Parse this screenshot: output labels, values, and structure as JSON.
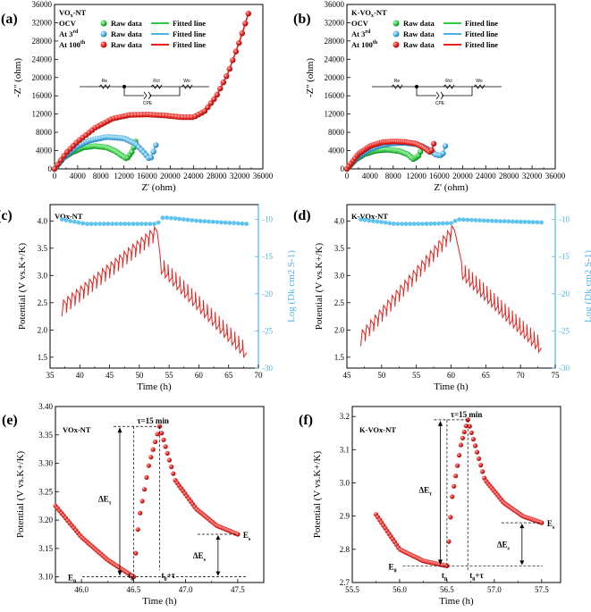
{
  "colors": {
    "ocv": "#2ecc40",
    "third": "#4fb3e8",
    "hundredth": "#e8201c",
    "diffusion": "#5ec3ee",
    "axis": "#000000"
  },
  "nyquist": [
    {
      "label": "(a)",
      "sample": "VOx-NT",
      "xlabel": "Z' (ohm)",
      "ylabel": "-Z'' (ohm)",
      "xticks": [
        "0",
        "4000",
        "8000",
        "12000",
        "16000",
        "20000",
        "24000",
        "28000",
        "32000",
        "36000"
      ],
      "yticks": [
        "0",
        "4000",
        "8000",
        "12000",
        "16000",
        "20000",
        "24000",
        "28000",
        "32000",
        "36000"
      ],
      "legend_rows": [
        {
          "state": "OCV",
          "raw": "Raw data",
          "fit": "Fitted line"
        },
        {
          "state": "At 3rd",
          "raw": "Raw data",
          "fit": "Fitted line"
        },
        {
          "state": "At 100th",
          "raw": "Raw data",
          "fit": "Fitted line"
        }
      ],
      "circuit": {
        "re": "Re",
        "rct": "Rct",
        "cpe": "CPE",
        "wo": "Wo"
      }
    },
    {
      "label": "(b)",
      "sample": "K-VOx-NT",
      "xlabel": "Z' (ohm)",
      "ylabel": "-Z'' (ohm)",
      "xticks": [
        "0",
        "4000",
        "8000",
        "12000",
        "16000",
        "20000",
        "24000",
        "28000",
        "32000",
        "36000"
      ],
      "yticks": [
        "0",
        "4000",
        "8000",
        "12000",
        "16000",
        "20000",
        "24000",
        "28000",
        "32000",
        "36000"
      ],
      "legend_rows": [
        {
          "state": "OCV",
          "raw": "Raw data",
          "fit": "Fitted line"
        },
        {
          "state": "At 3rd",
          "raw": "Raw data",
          "fit": "Fitted line"
        },
        {
          "state": "At 100th",
          "raw": "Raw data",
          "fit": "Fitted line"
        }
      ],
      "circuit": {
        "re": "Re",
        "rct": "Rct",
        "cpe": "CPE",
        "wo": "Wo"
      }
    }
  ],
  "gitt": [
    {
      "label": "(c)",
      "sample": "VOx-NT",
      "xlabel": "Time (h)",
      "ylabel_left": "Potential (V vs.K+/K)",
      "ylabel_right": "Log (Dk cm2 S-1)",
      "xticks": [
        "35",
        "40",
        "45",
        "50",
        "55",
        "60",
        "65",
        "70"
      ],
      "yticks_left": [
        "1.5",
        "2.0",
        "2.5",
        "3.0",
        "3.5",
        "4.0"
      ],
      "yticks_right": [
        "-30",
        "-25",
        "-20",
        "-15",
        "-10"
      ]
    },
    {
      "label": "(d)",
      "sample": "K-VOx-NT",
      "xlabel": "Time (h)",
      "ylabel_left": "Potential (V vs.K+/K)",
      "ylabel_right": "Log (Dk cm2 S-1)",
      "xticks": [
        "45",
        "50",
        "55",
        "60",
        "65",
        "70",
        "75"
      ],
      "yticks_left": [
        "1.5",
        "2.0",
        "2.5",
        "3.0",
        "3.5",
        "4.0"
      ],
      "yticks_right": [
        "-30",
        "-25",
        "-20",
        "-15",
        "-10"
      ]
    }
  ],
  "pulse": [
    {
      "label": "(e)",
      "sample": "VOx-NT",
      "xlabel": "Time (h)",
      "ylabel": "Potential (V vs.K+/K)",
      "xticks": [
        "46.0",
        "46.5",
        "47.0",
        "47.5"
      ],
      "yticks": [
        "3.10",
        "3.15",
        "3.20",
        "3.25",
        "3.30",
        "3.35",
        "3.40"
      ],
      "annotations": {
        "tau": "τ=15 min",
        "dEt": "ΔEτ",
        "dEs": "ΔEs",
        "E0": "E0",
        "Es": "Es",
        "t0": "t0",
        "t0tau": "t0+τ"
      }
    },
    {
      "label": "(f)",
      "sample": "K-VOx-NT",
      "xlabel": "Time (h)",
      "ylabel": "Potential (V vs.K+/K)",
      "xticks": [
        "55.5",
        "56.0",
        "56.5",
        "57.0",
        "57.5"
      ],
      "yticks": [
        "2.7",
        "2.8",
        "2.9",
        "3.0",
        "3.1",
        "3.2"
      ],
      "annotations": {
        "tau": "τ=15 min",
        "dEt": "ΔEτ",
        "dEs": "ΔEs",
        "E0": "E0",
        "Es": "Es",
        "t0": "t0",
        "t0tau": "t0+τ"
      }
    }
  ],
  "chart_data": [
    {
      "type": "scatter",
      "title": "(a) VOx-NT",
      "xlabel": "Z' (ohm)",
      "ylabel": "-Z'' (ohm)",
      "xlim": [
        0,
        36000
      ],
      "ylim": [
        0,
        36000
      ],
      "series": [
        {
          "name": "OCV",
          "x": [
            0,
            1500,
            3000,
            5000,
            7000,
            9000,
            10500,
            11500,
            12500,
            13500,
            14000
          ],
          "y": [
            0,
            2400,
            3600,
            4700,
            5000,
            4700,
            3900,
            3000,
            2200,
            4000,
            6000
          ]
        },
        {
          "name": "At 3rd",
          "x": [
            0,
            2000,
            4000,
            6000,
            9000,
            12000,
            14000,
            15500,
            16500,
            17000,
            17500
          ],
          "y": [
            0,
            3000,
            5000,
            6200,
            7000,
            6700,
            5500,
            3500,
            2000,
            3500,
            5200
          ]
        },
        {
          "name": "At 100th",
          "x": [
            0,
            2000,
            4000,
            7000,
            10000,
            13000,
            16000,
            19000,
            22000,
            24000,
            26000,
            28000,
            30000,
            32000,
            33500
          ],
          "y": [
            0,
            3500,
            6000,
            9000,
            11000,
            11800,
            11900,
            11700,
            11300,
            11300,
            12700,
            16000,
            21000,
            28000,
            34000
          ]
        }
      ]
    },
    {
      "type": "scatter",
      "title": "(b) K-VOx-NT",
      "xlabel": "Z' (ohm)",
      "ylabel": "-Z'' (ohm)",
      "xlim": [
        0,
        36000
      ],
      "ylim": [
        0,
        36000
      ],
      "series": [
        {
          "name": "OCV",
          "x": [
            0,
            1500,
            3000,
            5000,
            7000,
            9000,
            10500,
            11500,
            12500,
            13000
          ],
          "y": [
            0,
            2000,
            3200,
            4000,
            4200,
            3900,
            3200,
            2100,
            3000,
            5000
          ]
        },
        {
          "name": "At 3rd",
          "x": [
            0,
            2000,
            4000,
            6000,
            8000,
            10000,
            12000,
            14000,
            15500,
            16500,
            17000
          ],
          "y": [
            0,
            2800,
            4300,
            5200,
            5600,
            5700,
            5400,
            4400,
            3000,
            3000,
            5000
          ]
        },
        {
          "name": "At 100th",
          "x": [
            0,
            2000,
            4000,
            6000,
            8000,
            10000,
            12000,
            13500,
            14500,
            15000
          ],
          "y": [
            0,
            3300,
            5000,
            5800,
            6000,
            5900,
            5500,
            4500,
            3500,
            5500
          ]
        }
      ]
    },
    {
      "type": "line",
      "title": "(c) VOx-NT",
      "xlabel": "Time (h)",
      "xlim": [
        35,
        70
      ],
      "ylabel_left": "Potential (V vs.K+/K)",
      "ylim_left": [
        1.3,
        4.3
      ],
      "ylabel_right": "Log (Dk cm2 S-1)",
      "ylim_right": [
        -30,
        -8
      ],
      "series": [
        {
          "name": "Potential",
          "x": [
            37,
            53,
            53.5,
            68
          ],
          "y": [
            2.3,
            3.7,
            3.3,
            1.7
          ]
        },
        {
          "name": "Log Dk",
          "x": [
            37,
            41,
            45,
            50,
            53,
            54,
            60,
            68
          ],
          "y": [
            -10,
            -10.6,
            -10.6,
            -10.6,
            -10.6,
            -9.7,
            -10.2,
            -10.6
          ]
        }
      ]
    },
    {
      "type": "line",
      "title": "(d) K-VOx-NT",
      "xlabel": "Time (h)",
      "xlim": [
        45,
        75
      ],
      "ylabel_left": "Potential (V vs.K+/K)",
      "ylim_left": [
        1.3,
        4.3
      ],
      "ylabel_right": "Log (Dk cm2 S-1)",
      "ylim_right": [
        -30,
        -8
      ],
      "series": [
        {
          "name": "Potential",
          "x": [
            47,
            60.5,
            61.5,
            73
          ],
          "y": [
            1.75,
            3.75,
            3.2,
            1.8
          ]
        },
        {
          "name": "Log Dk",
          "x": [
            47,
            52,
            56,
            60,
            61,
            66,
            73
          ],
          "y": [
            -10,
            -10.6,
            -10.6,
            -10.5,
            -10,
            -10.2,
            -10.4
          ]
        }
      ]
    },
    {
      "type": "scatter",
      "title": "(e) VOx-NT",
      "xlabel": "Time (h)",
      "ylabel": "Potential (V vs.K+/K)",
      "xlim": [
        45.75,
        47.75
      ],
      "ylim": [
        3.09,
        3.4
      ],
      "series": [
        {
          "name": "Potential",
          "x": [
            45.75,
            46.0,
            46.25,
            46.5,
            46.55,
            46.65,
            46.75,
            46.9,
            47.1,
            47.3,
            47.5
          ],
          "y": [
            3.225,
            3.17,
            3.13,
            3.1,
            3.2,
            3.3,
            3.365,
            3.27,
            3.22,
            3.19,
            3.175
          ]
        }
      ]
    },
    {
      "type": "scatter",
      "title": "(f) K-VOx-NT",
      "xlabel": "Time (h)",
      "ylabel": "Potential (V vs.K+/K)",
      "xlim": [
        55.5,
        57.7
      ],
      "ylim": [
        2.7,
        3.23
      ],
      "series": [
        {
          "name": "Potential",
          "x": [
            55.75,
            56.0,
            56.25,
            56.5,
            56.55,
            56.65,
            56.72,
            56.9,
            57.1,
            57.3,
            57.5
          ],
          "y": [
            2.905,
            2.8,
            2.765,
            2.75,
            2.95,
            3.12,
            3.19,
            3.01,
            2.94,
            2.9,
            2.88
          ]
        }
      ]
    }
  ]
}
